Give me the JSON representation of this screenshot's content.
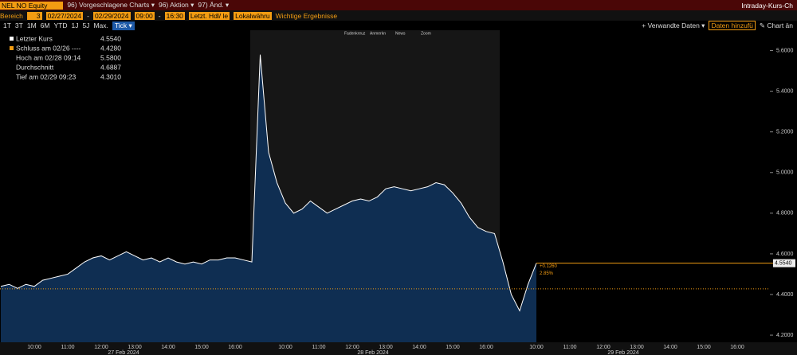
{
  "toolbar": {
    "security": "NEL NO Equity",
    "menus": [
      "96) Vorgeschlagene Charts ▾",
      "96) Aktion ▾",
      "97) Änd. ▾"
    ],
    "window_title": "Intraday-Kurs-Ch"
  },
  "settings": {
    "range_label": "Bereich",
    "range_value": "3",
    "start_date": "02/27/2024",
    "dash": "-",
    "end_date": "02/29/2024",
    "start_time": "09:00",
    "end_time": "16:30",
    "price_field": "Letzt. Hdl/ le",
    "currency": "Lokalwähru",
    "events": "Wichtige Ergebnisse"
  },
  "periods": {
    "buttons": [
      "1T",
      "3T",
      "1M",
      "6M",
      "YTD",
      "1J",
      "5J",
      "Max."
    ],
    "active": "Tick ▾",
    "related": "+ Verwandte Daten ▾",
    "add_data": "Daten hinzufü",
    "chart_edit": "✎ Chart än"
  },
  "chart_tools": [
    "Fadenkreuz",
    "Anmerkn",
    "News",
    "Zoom"
  ],
  "legend_box": [
    [
      "Letzter Kurs",
      "4.5540"
    ],
    [
      "Schluss am 02/26 ----",
      "4.4280"
    ],
    [
      "Hoch am 02/28 09:14",
      "5.5800"
    ],
    [
      "Durchschnitt",
      "4.6887"
    ],
    [
      "Tief am 02/29 09:23",
      "4.3010"
    ]
  ],
  "chart_data": {
    "type": "area",
    "color": "#ffffff",
    "fill": "#0f2e52",
    "categories": [
      null,
      null,
      null,
      null,
      "10:00",
      null,
      null,
      null,
      "11:00",
      null,
      null,
      null,
      "12:00",
      null,
      null,
      null,
      "13:00",
      null,
      null,
      null,
      "14:00",
      null,
      null,
      null,
      "15:00",
      null,
      null,
      null,
      "16:00",
      null,
      null,
      null,
      null,
      null,
      "10:00",
      null,
      null,
      null,
      "11:00",
      null,
      null,
      null,
      "12:00",
      null,
      null,
      null,
      "13:00",
      null,
      null,
      null,
      "14:00",
      null,
      null,
      null,
      "15:00",
      null,
      null,
      null,
      "16:00",
      null,
      null,
      null,
      null,
      null,
      "10:00",
      null,
      null,
      null,
      "11:00",
      null,
      null,
      null,
      "12:00",
      null,
      null,
      null,
      "13:00",
      null,
      null,
      null,
      "14:00",
      null,
      null,
      null,
      "15:00",
      null,
      null,
      null,
      "16:00",
      null,
      null
    ],
    "values": [
      4.44,
      4.45,
      4.43,
      4.45,
      4.44,
      4.47,
      4.48,
      4.49,
      4.5,
      4.53,
      4.56,
      4.58,
      4.59,
      4.57,
      4.59,
      4.61,
      4.59,
      4.57,
      4.58,
      4.56,
      4.58,
      4.56,
      4.55,
      4.56,
      4.55,
      4.57,
      4.57,
      4.58,
      4.58,
      4.57,
      4.56,
      5.58,
      5.1,
      4.95,
      4.85,
      4.8,
      4.82,
      4.86,
      4.83,
      4.8,
      4.82,
      4.84,
      4.86,
      4.87,
      4.86,
      4.88,
      4.92,
      4.93,
      4.92,
      4.91,
      4.92,
      4.93,
      4.95,
      4.94,
      4.9,
      4.85,
      4.78,
      4.73,
      4.71,
      4.7,
      4.56,
      4.4,
      4.32,
      4.45,
      4.554,
      null,
      null,
      null,
      null,
      null,
      null,
      null,
      null,
      null,
      null,
      null,
      null,
      null,
      null,
      null,
      null,
      null,
      null,
      null,
      null,
      null,
      null,
      null,
      null,
      null,
      null
    ],
    "dates": [
      "27 Feb 2024",
      "28 Feb 2024",
      "29 Feb 2024"
    ],
    "ylim": [
      4.165,
      5.7
    ],
    "yticks": [
      {
        "value": 4.2,
        "label": "4.2000"
      },
      {
        "value": 4.4,
        "label": "4.4000"
      },
      {
        "value": 4.6,
        "label": "4.6000"
      },
      {
        "value": 4.8,
        "label": "4.8000"
      },
      {
        "value": 5.0,
        "label": "5.0000"
      },
      {
        "value": 5.2,
        "label": "5.2000"
      },
      {
        "value": 5.4,
        "label": "5.4000"
      },
      {
        "value": 5.6,
        "label": "5.6000"
      }
    ],
    "previous_close": 4.428,
    "last_price": 4.554,
    "last_price_label": "4.5540",
    "change": "+0.1260",
    "change_pct": "2.85%"
  }
}
